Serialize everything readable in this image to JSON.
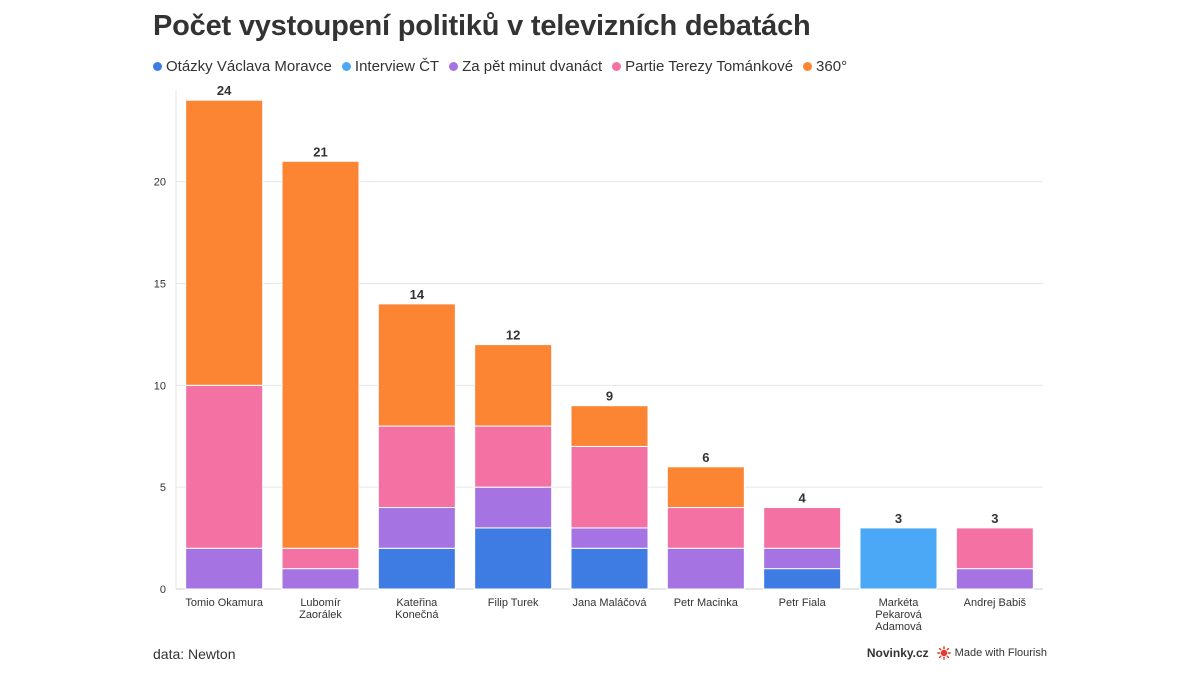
{
  "chart_data": {
    "type": "bar",
    "stacked": true,
    "title": "Počet vystoupení politiků v televizních debatách",
    "categories": [
      [
        "Tomio Okamura"
      ],
      [
        "Lubomír",
        "Zaorálek"
      ],
      [
        "Kateřina",
        "Konečná"
      ],
      [
        "Filip Turek"
      ],
      [
        "Jana Maláčová"
      ],
      [
        "Petr Macinka"
      ],
      [
        "Petr Fiala"
      ],
      [
        "Markéta",
        "Pekarová",
        "Adamová"
      ],
      [
        "Andrej Babiš"
      ]
    ],
    "series": [
      {
        "name": "Otázky Václava Moravce",
        "color": "#3e7be3",
        "values": [
          0,
          0,
          2,
          3,
          2,
          0,
          1,
          0,
          0
        ]
      },
      {
        "name": "Interview ČT",
        "color": "#4aa8f7",
        "values": [
          0,
          0,
          0,
          0,
          0,
          0,
          0,
          3,
          0
        ]
      },
      {
        "name": "Za pět minut dvanáct",
        "color": "#a673e2",
        "values": [
          2,
          1,
          2,
          2,
          1,
          2,
          1,
          0,
          1
        ]
      },
      {
        "name": "Partie Terezy Tománkové",
        "color": "#f472a3",
        "values": [
          8,
          1,
          4,
          3,
          4,
          2,
          2,
          0,
          2
        ]
      },
      {
        "name": "360°",
        "color": "#fc8533",
        "values": [
          14,
          19,
          6,
          4,
          2,
          2,
          0,
          0,
          0
        ]
      }
    ],
    "totals": [
      "24",
      "21",
      "14",
      "12",
      "9",
      "6",
      "4",
      "3",
      "3"
    ],
    "yticks": [
      "0",
      "5",
      "10",
      "15",
      "20"
    ],
    "ylim": [
      0,
      24.5
    ],
    "xlabel": "",
    "ylabel": "",
    "grid": true
  },
  "footer": {
    "source": "data: Newton",
    "brand": "Novinky.cz",
    "made_with": "Made with Flourish"
  }
}
